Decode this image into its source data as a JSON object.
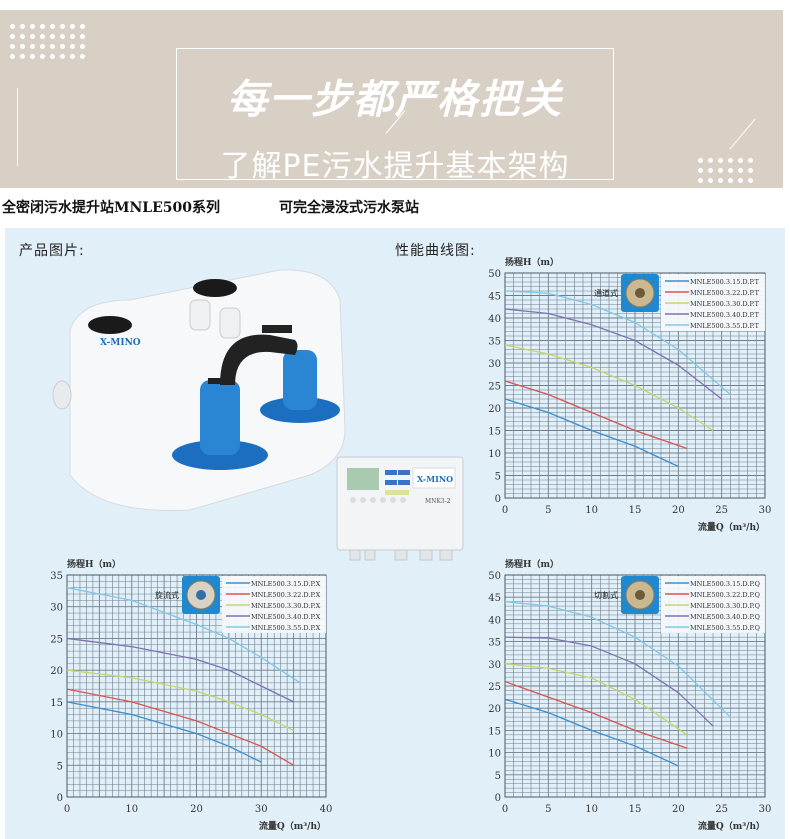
{
  "banner": {
    "title": "每一步都严格把关",
    "subtitle": "了解PE污水提升基本架构"
  },
  "product_line": {
    "series": "全密闭污水提升站MNLE500系列",
    "feature": "可完全浸没式污水泵站"
  },
  "panel": {
    "product_image_label": "产品图片:",
    "curve_label": "性能曲线图:",
    "brand_logo": "X-MINO",
    "controller_model": "MNK3-2"
  },
  "colors": {
    "banner_bg": "#d8cfc5",
    "panel_bg": "#e1eff9",
    "series": [
      "#3a8fd0",
      "#d9534f",
      "#c5d66a",
      "#7d72b5",
      "#80c8e8"
    ]
  },
  "chart_data": [
    {
      "type": "line",
      "impeller_label": "通道式",
      "impeller_icon": "channel-impeller-photo",
      "ylabel": "扬程H（m）",
      "xlabel": "流量Q（m³/h）",
      "xlim": [
        0,
        30
      ],
      "ylim": [
        0,
        50
      ],
      "xticks": [
        0,
        5,
        10,
        15,
        20,
        25,
        30
      ],
      "yticks": [
        0,
        5,
        10,
        15,
        20,
        25,
        30,
        35,
        40,
        45,
        50
      ],
      "grid": true,
      "legend": "top-right",
      "series": [
        {
          "name": "MNLE500.3.15.D.P.T",
          "points": [
            [
              0,
              22
            ],
            [
              5,
              19
            ],
            [
              10,
              15
            ],
            [
              15,
              11.5
            ],
            [
              20,
              7
            ]
          ]
        },
        {
          "name": "MNLE500.3.22.D.P.T",
          "points": [
            [
              0,
              26
            ],
            [
              5,
              23
            ],
            [
              10,
              19
            ],
            [
              15,
              15
            ],
            [
              18,
              13
            ],
            [
              21,
              11
            ]
          ]
        },
        {
          "name": "MNLE500.3.30.D.P.T",
          "points": [
            [
              0,
              34
            ],
            [
              5,
              32
            ],
            [
              10,
              29
            ],
            [
              15,
              25
            ],
            [
              20,
              20
            ],
            [
              24,
              15
            ]
          ]
        },
        {
          "name": "MNLE500.3.40.D.P.T",
          "points": [
            [
              0,
              42
            ],
            [
              5,
              41
            ],
            [
              10,
              38.5
            ],
            [
              15,
              35
            ],
            [
              20,
              29.5
            ],
            [
              25,
              22
            ]
          ]
        },
        {
          "name": "MNLE500.3.55.D.P.T",
          "points": [
            [
              0,
              46
            ],
            [
              5,
              45.5
            ],
            [
              10,
              43
            ],
            [
              15,
              39
            ],
            [
              20,
              33
            ],
            [
              26,
              23
            ]
          ]
        }
      ]
    },
    {
      "type": "line",
      "impeller_label": "旋流式",
      "impeller_icon": "vortex-impeller-photo",
      "ylabel": "扬程H（m）",
      "xlabel": "流量Q（m³/h）",
      "xlim": [
        0,
        40
      ],
      "ylim": [
        0,
        35
      ],
      "xticks": [
        0,
        10,
        20,
        30,
        40
      ],
      "yticks": [
        0,
        5,
        10,
        15,
        20,
        25,
        30,
        35
      ],
      "grid": true,
      "legend": "top-right",
      "series": [
        {
          "name": "MNLE500.3.15.D.P.X",
          "points": [
            [
              0,
              15
            ],
            [
              10,
              13
            ],
            [
              20,
              10
            ],
            [
              25,
              8
            ],
            [
              30,
              5.5
            ]
          ]
        },
        {
          "name": "MNLE500.3.22.D.P.X",
          "points": [
            [
              0,
              17
            ],
            [
              10,
              15
            ],
            [
              20,
              12
            ],
            [
              25,
              10
            ],
            [
              30,
              8
            ],
            [
              35,
              5
            ]
          ]
        },
        {
          "name": "MNLE500.3.30.D.P.X",
          "points": [
            [
              0,
              20
            ],
            [
              10,
              18.8
            ],
            [
              20,
              16.7
            ],
            [
              25,
              15
            ],
            [
              30,
              13
            ],
            [
              35,
              10.5
            ]
          ]
        },
        {
          "name": "MNLE500.3.40.D.P.X",
          "points": [
            [
              0,
              25
            ],
            [
              10,
              23.7
            ],
            [
              20,
              21.7
            ],
            [
              25,
              20
            ],
            [
              30,
              17.5
            ],
            [
              35,
              15
            ]
          ]
        },
        {
          "name": "MNLE500.3.55.D.P.X",
          "points": [
            [
              0,
              33
            ],
            [
              10,
              31
            ],
            [
              20,
              27.2
            ],
            [
              25,
              25
            ],
            [
              30,
              22
            ],
            [
              36,
              18
            ]
          ]
        }
      ]
    },
    {
      "type": "line",
      "impeller_label": "切割式",
      "impeller_icon": "cutter-impeller-photo",
      "ylabel": "扬程H（m）",
      "xlabel": "流量Q（m³/h）",
      "xlim": [
        0,
        30
      ],
      "ylim": [
        0,
        50
      ],
      "xticks": [
        0,
        5,
        10,
        15,
        20,
        25,
        30
      ],
      "yticks": [
        0,
        5,
        10,
        15,
        20,
        25,
        30,
        35,
        40,
        45,
        50
      ],
      "grid": true,
      "legend": "top-right",
      "series": [
        {
          "name": "MNLE500.3.15.D.P.Q",
          "points": [
            [
              0,
              22
            ],
            [
              5,
              19
            ],
            [
              10,
              15
            ],
            [
              15,
              11.5
            ],
            [
              20,
              7
            ]
          ]
        },
        {
          "name": "MNLE500.3.22.D.P.Q",
          "points": [
            [
              0,
              26
            ],
            [
              5,
              22.5
            ],
            [
              10,
              19
            ],
            [
              15,
              15
            ],
            [
              18,
              13
            ],
            [
              21,
              11
            ]
          ]
        },
        {
          "name": "MNLE500.3.30.D.P.Q",
          "points": [
            [
              0,
              30
            ],
            [
              5,
              29
            ],
            [
              10,
              26.8
            ],
            [
              15,
              22
            ],
            [
              18,
              18
            ],
            [
              21,
              14
            ]
          ]
        },
        {
          "name": "MNLE500.3.40.D.P.Q",
          "points": [
            [
              0,
              36
            ],
            [
              5,
              35.8
            ],
            [
              10,
              34
            ],
            [
              15,
              30
            ],
            [
              20,
              23.5
            ],
            [
              24,
              16
            ]
          ]
        },
        {
          "name": "MNLE500.3.55.D.P.Q",
          "points": [
            [
              0,
              44
            ],
            [
              5,
              43
            ],
            [
              10,
              40.5
            ],
            [
              15,
              36
            ],
            [
              20,
              29.5
            ],
            [
              26,
              18
            ]
          ]
        }
      ]
    }
  ]
}
